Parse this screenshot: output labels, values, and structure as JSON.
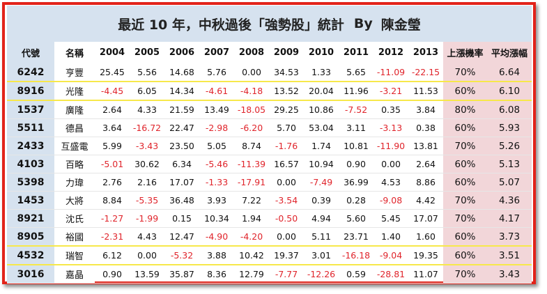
{
  "title": {
    "text": "最近 10 年，中秋過後「強勢股」統計",
    "by": "By",
    "author": "陳金瑩"
  },
  "colors": {
    "frame": "#e2231a",
    "header_bg": "#d6e2ef",
    "stats_bg": "#f2d6d9",
    "negative": "#e0242b",
    "highlight_line": "#f7e84a"
  },
  "headers": [
    "代號",
    "名稱",
    "2004",
    "2005",
    "2006",
    "2007",
    "2008",
    "2009",
    "2010",
    "2011",
    "2012",
    "2013",
    "上漲機率",
    "平均漲幅"
  ],
  "rows": [
    {
      "code": "6242",
      "name": "亨豐",
      "values": [
        "25.45",
        "5.56",
        "14.68",
        "5.76",
        "0.00",
        "34.53",
        "1.33",
        "5.65",
        "-11.09",
        "-22.15"
      ],
      "prob": "70%",
      "avg": "6.64",
      "hl": "bottom"
    },
    {
      "code": "8916",
      "name": "光隆",
      "values": [
        "-4.45",
        "6.05",
        "14.34",
        "-4.61",
        "-4.18",
        "13.52",
        "20.04",
        "11.96",
        "-3.21",
        "11.53"
      ],
      "prob": "60%",
      "avg": "6.10",
      "hl": "bottom"
    },
    {
      "code": "1537",
      "name": "廣隆",
      "values": [
        "2.64",
        "4.33",
        "21.59",
        "13.49",
        "-18.05",
        "29.25",
        "10.86",
        "-7.52",
        "0.35",
        "3.84"
      ],
      "prob": "80%",
      "avg": "6.08",
      "hl": ""
    },
    {
      "code": "5511",
      "name": "德昌",
      "values": [
        "3.64",
        "-16.72",
        "22.47",
        "-2.98",
        "-6.20",
        "5.70",
        "53.04",
        "3.11",
        "-3.13",
        "0.38"
      ],
      "prob": "60%",
      "avg": "5.93",
      "hl": ""
    },
    {
      "code": "2433",
      "name": "互盛電",
      "values": [
        "5.99",
        "-3.43",
        "23.50",
        "5.05",
        "8.74",
        "-1.76",
        "1.74",
        "10.81",
        "-11.90",
        "13.81"
      ],
      "prob": "70%",
      "avg": "5.26",
      "hl": ""
    },
    {
      "code": "4103",
      "name": "百略",
      "values": [
        "-5.01",
        "30.62",
        "6.34",
        "-5.46",
        "-11.39",
        "16.57",
        "10.94",
        "0.90",
        "0.00",
        "2.64"
      ],
      "prob": "60%",
      "avg": "5.13",
      "hl": ""
    },
    {
      "code": "5398",
      "name": "力瑋",
      "values": [
        "2.76",
        "2.16",
        "17.07",
        "-1.33",
        "-17.91",
        "0.00",
        "-7.49",
        "36.99",
        "4.53",
        "8.86"
      ],
      "prob": "60%",
      "avg": "5.07",
      "hl": ""
    },
    {
      "code": "1453",
      "name": "大將",
      "values": [
        "8.84",
        "-5.35",
        "36.48",
        "3.93",
        "7.22",
        "-3.54",
        "0.39",
        "0.28",
        "-9.08",
        "4.42"
      ],
      "prob": "70%",
      "avg": "4.36",
      "hl": ""
    },
    {
      "code": "8921",
      "name": "沈氏",
      "values": [
        "-1.27",
        "-1.99",
        "0.15",
        "10.34",
        "1.94",
        "-0.50",
        "4.94",
        "5.60",
        "5.45",
        "17.07"
      ],
      "prob": "70%",
      "avg": "4.17",
      "hl": ""
    },
    {
      "code": "8905",
      "name": "裕國",
      "values": [
        "-2.31",
        "4.43",
        "12.47",
        "-4.90",
        "-4.20",
        "0.00",
        "5.11",
        "23.71",
        "1.40",
        "1.60"
      ],
      "prob": "60%",
      "avg": "3.73",
      "hl": "bottom"
    },
    {
      "code": "4532",
      "name": "瑞智",
      "values": [
        "6.12",
        "0.00",
        "-5.32",
        "3.88",
        "10.42",
        "19.37",
        "3.01",
        "-16.18",
        "-9.04",
        "19.35"
      ],
      "prob": "60%",
      "avg": "3.51",
      "hl": "bottom"
    },
    {
      "code": "3016",
      "name": "嘉晶",
      "values": [
        "0.90",
        "13.59",
        "35.87",
        "8.36",
        "12.79",
        "-7.77",
        "-12.26",
        "0.59",
        "-28.81",
        "11.07"
      ],
      "prob": "70%",
      "avg": "3.43",
      "hl": ""
    }
  ]
}
